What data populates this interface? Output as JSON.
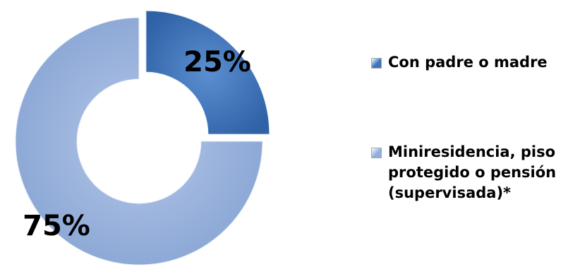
{
  "chart_data": {
    "type": "pie",
    "categories": [
      "Con padre o madre",
      "Miniresidencia, piso protegido o pensión (supervisada)*"
    ],
    "values": [
      25,
      75
    ],
    "labels": [
      "25%",
      "75%"
    ],
    "colors": [
      "#3f74b8",
      "#94aedb"
    ],
    "title": "",
    "legend": "right"
  }
}
